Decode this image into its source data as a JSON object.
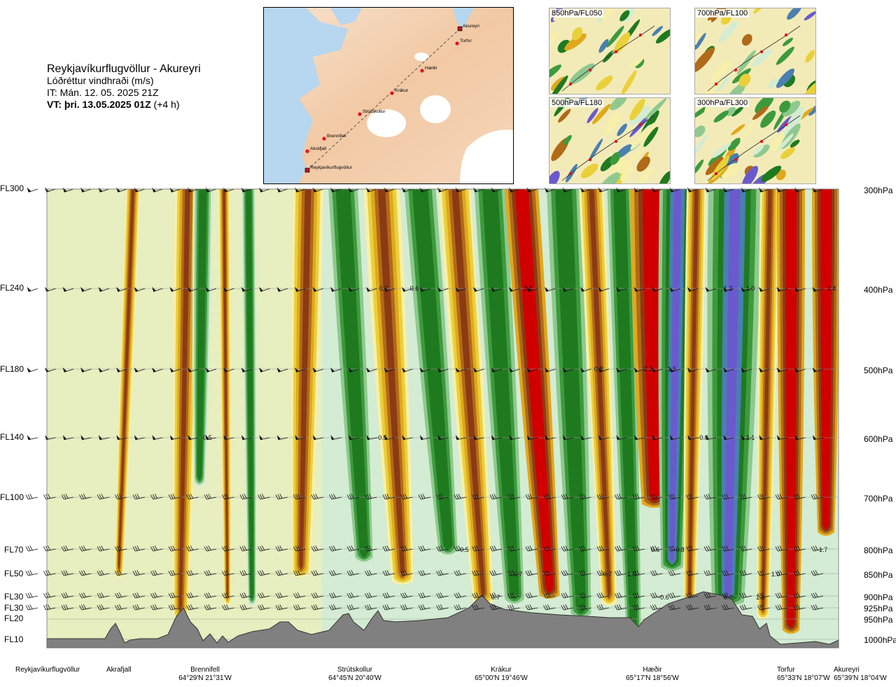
{
  "title": {
    "route": "Reykjavíkurflugvöllur - Akureyri",
    "product": "Lóðréttur vindhraði (m/s)",
    "issue_time": "IT: Mán. 12. 05. 2025 21Z",
    "valid_prefix": "VT: þri. 13.05.2025 01Z",
    "valid_suffix": "(+4 h)"
  },
  "route_map": {
    "waypoints": [
      "Akureyri",
      "Torfur",
      "Hæðir",
      "Krákur",
      "Strútskollur",
      "Brennifell",
      "Akrafjall",
      "Reykjavíkurflugvöllur"
    ]
  },
  "level_maps": [
    {
      "label": "850hPa/FL050"
    },
    {
      "label": "700hPa/FL100"
    },
    {
      "label": "500hPa/FL180"
    },
    {
      "label": "300hPa/FL300"
    }
  ],
  "flight_levels": [
    "FL300",
    "FL240",
    "FL180",
    "FL140",
    "FL100",
    "FL70",
    "FL50",
    "FL30",
    "FL30",
    "FL20",
    "FL10"
  ],
  "pressure_levels": [
    "300hPa",
    "400hPa",
    "500hPa",
    "600hPa",
    "700hPa",
    "800hPa",
    "850hPa",
    "900hPa",
    "925hPa",
    "950hPa",
    "1000hPa"
  ],
  "stations": [
    {
      "name": "Reykjavíkurflugvöllur",
      "coord": ""
    },
    {
      "name": "Akrafjall",
      "coord": ""
    },
    {
      "name": "Brennifell",
      "coord": "64°29'N 21°31'W"
    },
    {
      "name": "Strútskollur",
      "coord": "64°45'N 20°40'W"
    },
    {
      "name": "Krákur",
      "coord": "65°00'N 19°46'W"
    },
    {
      "name": "Hæðir",
      "coord": "65°17'N 18°56'W"
    },
    {
      "name": "Torfur",
      "coord": "65°33'N 18°07'W"
    },
    {
      "name": "Akureyri",
      "coord": "65°39'N 18°04'W"
    }
  ],
  "chart_data": {
    "type": "heatmap",
    "title": "Lóðréttur vindhraði (m/s)",
    "x_axis": "route distance Reykjavíkurflugvöllur → Akureyri",
    "y_axis_left": [
      "FL10",
      "FL20",
      "FL30",
      "FL30",
      "FL50",
      "FL70",
      "FL100",
      "FL140",
      "FL180",
      "FL240",
      "FL300"
    ],
    "y_axis_right": [
      "1000hPa",
      "950hPa",
      "925hPa",
      "900hPa",
      "850hPa",
      "800hPa",
      "700hPa",
      "600hPa",
      "500hPa",
      "400hPa",
      "300hPa"
    ],
    "colors": {
      "strong_down": "#6a5acd",
      "down_2": "#4a7fb0",
      "down_3": "#1f7a1f",
      "down_4": "#3c9a3c",
      "down_5": "#8fc98f",
      "weak_down": "#d3ecd3",
      "weak_up": "#f7efaa",
      "up_2": "#ead03a",
      "up_3": "#e0a81c",
      "up_4": "#b06a18",
      "up_5": "#8b3a14",
      "strong_up": "#d10000",
      "terrain": "#808080"
    },
    "value_labels": [
      {
        "level": "FL240",
        "text": "0.7"
      },
      {
        "level": "FL240",
        "text": "0.6"
      },
      {
        "level": "FL240",
        "text": "2.4"
      },
      {
        "level": "FL240",
        "text": "1.2"
      },
      {
        "level": "FL240",
        "text": "1.0"
      },
      {
        "level": "FL240",
        "text": "2.4"
      },
      {
        "level": "FL180",
        "text": "0.8"
      },
      {
        "level": "FL180",
        "text": "2.2"
      },
      {
        "level": "FL180",
        "text": "1.5"
      },
      {
        "level": "FL140",
        "text": "-0.5"
      },
      {
        "level": "FL140",
        "text": "-0.5"
      },
      {
        "level": "FL140",
        "text": "-0.8"
      },
      {
        "level": "FL140",
        "text": "1.1"
      },
      {
        "level": "FL70",
        "text": "-0.5"
      },
      {
        "level": "FL70",
        "text": "0.6"
      },
      {
        "level": "FL70",
        "text": "-0.8"
      },
      {
        "level": "FL70",
        "text": "1.7"
      },
      {
        "level": "FL50",
        "text": "0.7"
      },
      {
        "level": "FL50",
        "text": "0.7"
      },
      {
        "level": "FL50",
        "text": "1.0"
      },
      {
        "level": "FL50",
        "text": "1.0"
      },
      {
        "level": "FL30",
        "text": "0.7"
      },
      {
        "level": "FL30",
        "text": "-0.6"
      },
      {
        "level": "FL30",
        "text": "0.7"
      },
      {
        "level": "FL30",
        "text": "1.3"
      }
    ]
  }
}
